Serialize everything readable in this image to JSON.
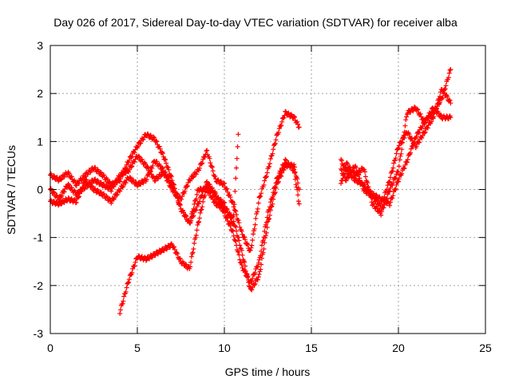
{
  "chart_data": {
    "type": "scatter",
    "title": "Day 026 of 2017, Sidereal Day-to-day VTEC variation (SDTVAR) for receiver alba",
    "xlabel": "GPS time / hours",
    "ylabel": "SDTVAR / TECUs",
    "xlim": [
      0,
      25
    ],
    "ylim": [
      -3,
      3
    ],
    "xticks": [
      0,
      5,
      10,
      15,
      20,
      25
    ],
    "yticks": [
      -3,
      -2,
      -1,
      0,
      1,
      2,
      3
    ],
    "xtick_labels": [
      "0",
      "5",
      "10",
      "15",
      "20",
      "25"
    ],
    "ytick_labels": [
      "-3",
      "-2",
      "-1",
      "0",
      "1",
      "2",
      "3"
    ],
    "grid": true,
    "marker": "+",
    "color": "#ff0000",
    "series": [
      {
        "name": "track-1",
        "x": [
          0,
          0.5,
          1,
          1.5,
          2,
          2.5,
          3,
          3.5,
          4,
          4.5,
          5,
          5.5,
          6,
          6.5,
          7,
          7.5,
          8,
          8.5,
          9,
          9.5,
          10,
          10.5,
          11,
          11.5,
          12,
          12.5,
          13,
          13.5,
          14,
          14.3
        ],
        "y": [
          0.3,
          0.2,
          0.35,
          0.1,
          0.3,
          0.45,
          0.3,
          0.1,
          0.2,
          0.6,
          0.9,
          1.15,
          1.05,
          0.7,
          0.2,
          -0.4,
          -0.7,
          -0.3,
          0.15,
          -0.1,
          -0.5,
          -0.9,
          -1.6,
          -1.95,
          -1.5,
          -0.5,
          0.2,
          0.6,
          0.4,
          -0.3
        ]
      },
      {
        "name": "track-2",
        "x": [
          0,
          0.5,
          1,
          1.5,
          2,
          2.5,
          3,
          3.5,
          4,
          4.5,
          5,
          5.5,
          6,
          6.5,
          7,
          7.5,
          8,
          8.5,
          9,
          9.5,
          10,
          10.5,
          11,
          11.5,
          12,
          12.5,
          13,
          13.5,
          14,
          14.3
        ],
        "y": [
          0.0,
          -0.2,
          0.1,
          -0.1,
          0.05,
          0.2,
          0.1,
          0.0,
          0.3,
          0.4,
          0.7,
          0.5,
          0.2,
          0.35,
          0.0,
          -0.2,
          0.2,
          0.4,
          0.8,
          0.2,
          0.1,
          -0.3,
          -0.9,
          -1.3,
          -0.2,
          0.4,
          1.1,
          1.6,
          1.5,
          1.3
        ]
      },
      {
        "name": "track-3",
        "x": [
          0,
          0.5,
          1,
          1.5,
          2,
          2.5,
          3,
          3.5,
          4,
          4.5,
          5,
          5.5,
          6,
          6.5,
          7,
          7.5,
          8,
          8.5,
          9,
          9.5,
          10,
          10.5,
          11,
          11.5,
          12,
          12.5,
          13,
          13.5,
          14,
          14.3
        ],
        "y": [
          -0.25,
          -0.3,
          -0.2,
          -0.25,
          0.2,
          0.0,
          -0.1,
          -0.25,
          0.0,
          0.25,
          0.1,
          0.2,
          0.6,
          0.4,
          0.1,
          -0.4,
          -0.7,
          0.0,
          0.0,
          -0.3,
          -0.4,
          -0.6,
          -1.3,
          -2.1,
          -1.8,
          -0.7,
          0.1,
          0.5,
          0.5,
          0.0
        ]
      },
      {
        "name": "track-4",
        "x": [
          4,
          4.5,
          5,
          5.5,
          6,
          6.5,
          7,
          7.5,
          8,
          8.5,
          9,
          9.5,
          10,
          10.5,
          10.8
        ],
        "y": [
          -2.55,
          -1.9,
          -1.4,
          -1.45,
          -1.35,
          -1.25,
          -1.15,
          -1.5,
          -1.65,
          -0.7,
          0.1,
          -0.15,
          -0.3,
          -0.75,
          1.15
        ]
      },
      {
        "name": "track-5",
        "x": [
          16.7,
          17,
          17.5,
          18,
          18.5,
          19,
          19.5,
          20,
          20.5,
          21,
          21.5,
          22,
          22.5,
          23
        ],
        "y": [
          0.6,
          0.4,
          0.2,
          0.1,
          -0.1,
          -0.2,
          -0.3,
          0.2,
          0.6,
          1.1,
          1.4,
          1.6,
          1.9,
          2.5
        ]
      },
      {
        "name": "track-6",
        "x": [
          16.7,
          17,
          17.5,
          18,
          18.5,
          19,
          19.5,
          20,
          20.5,
          21,
          21.5,
          22,
          22.5,
          23
        ],
        "y": [
          0.1,
          0.55,
          0.3,
          0.45,
          -0.3,
          -0.5,
          0.0,
          0.4,
          1.6,
          1.7,
          1.4,
          1.7,
          1.5,
          1.5
        ]
      },
      {
        "name": "track-7",
        "x": [
          16.7,
          17,
          17.5,
          18,
          18.5,
          19,
          19.5,
          20,
          20.5,
          21,
          21.5,
          22,
          22.5,
          23
        ],
        "y": [
          0.4,
          0.2,
          0.5,
          0.0,
          -0.15,
          -0.35,
          0.2,
          0.9,
          1.2,
          0.9,
          1.2,
          1.5,
          2.1,
          1.8
        ]
      }
    ]
  }
}
